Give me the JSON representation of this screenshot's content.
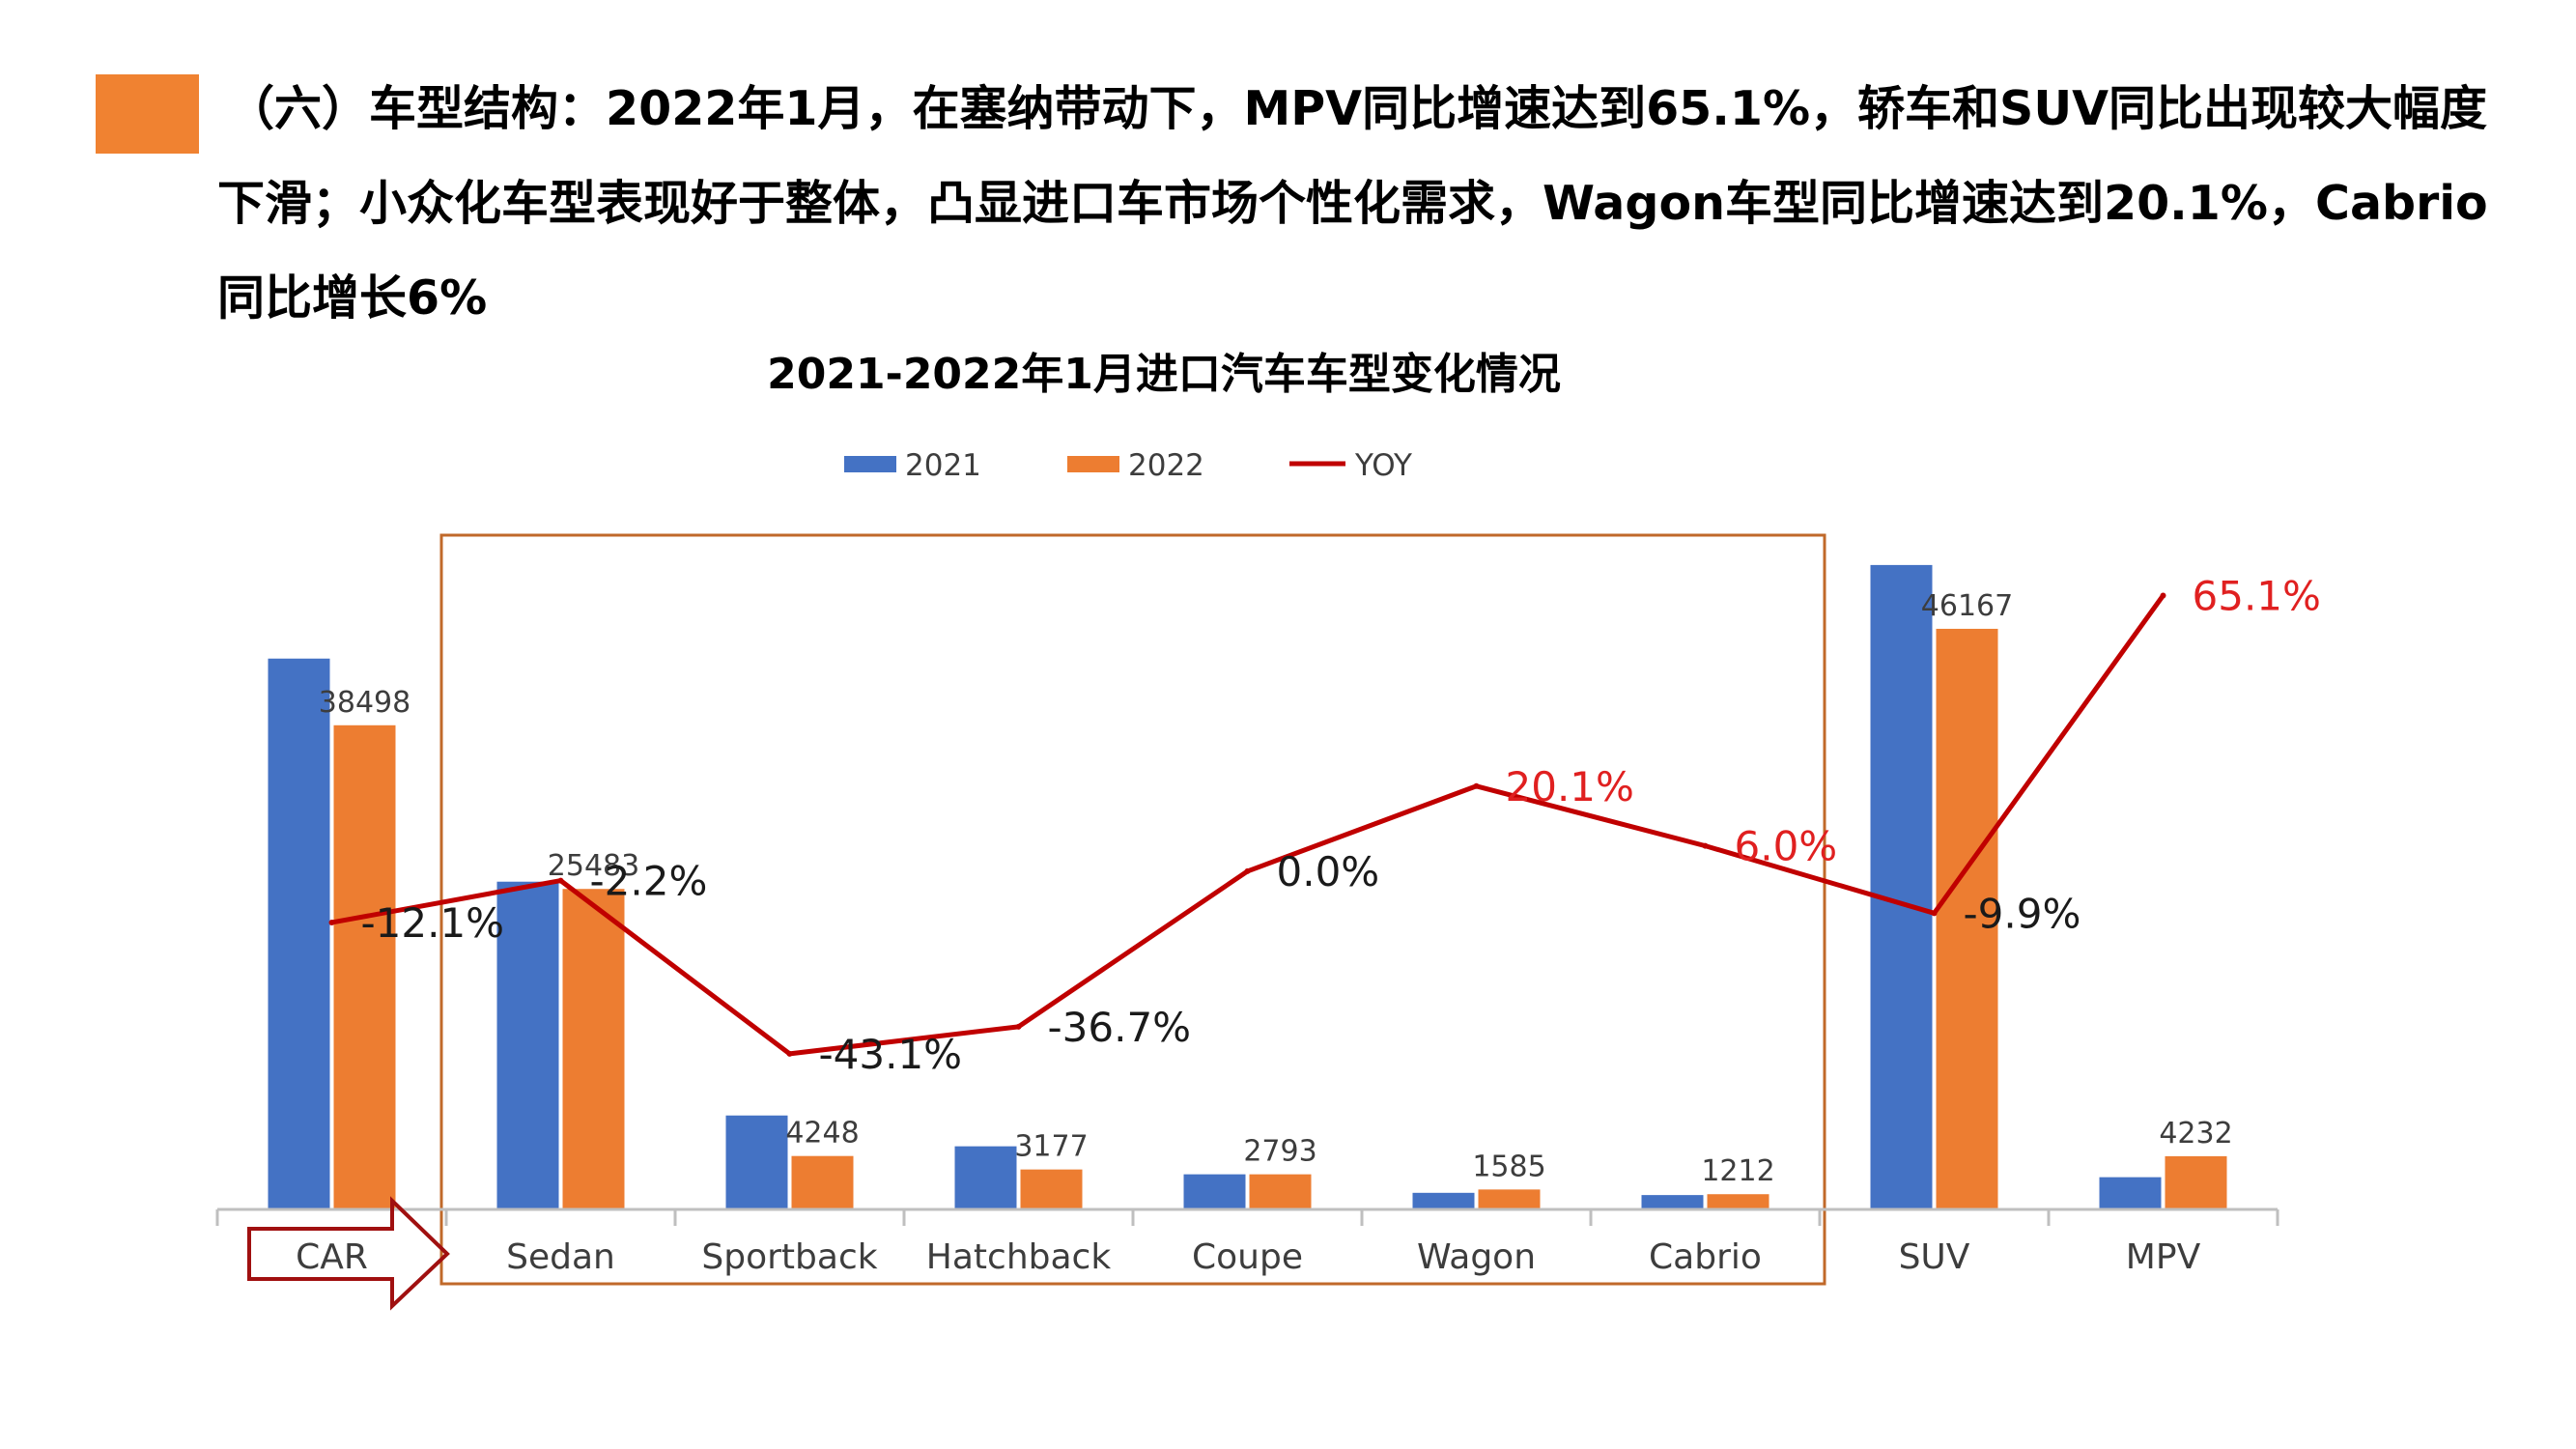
{
  "heading": {
    "line1": "（六）车型结构：2022年1月，在塞纳带动下，MPV同比增速达到65.1%，轿车和SUV同比出现较大幅度",
    "line2": "下滑；小众化车型表现好于整体，凸显进口车市场个性化需求，Wagon车型同比增速达到20.1%，Cabrio",
    "line3": "同比增长6%"
  },
  "colors": {
    "accent": "#F08231",
    "series_2021": "#4472C4",
    "series_2022": "#ED7D31",
    "yoy_line": "#C00000",
    "yoy_label_positive": "#E02020",
    "yoy_label_negative": "#1a1a1a",
    "highlight_box": "#C0692A",
    "arrow": "#A01010"
  },
  "chart_data": {
    "type": "bar",
    "title": "2021-2022年1月进口汽车车型变化情况",
    "categories": [
      "CAR",
      "Sedan",
      "Sportback",
      "Hatchback",
      "Coupe",
      "Wagon",
      "Cabrio",
      "SUV",
      "MPV"
    ],
    "series": [
      {
        "name": "2021",
        "values": [
          43800,
          26060,
          7470,
          5020,
          2793,
          1320,
          1143,
          51240,
          2563
        ]
      },
      {
        "name": "2022",
        "values": [
          38498,
          25483,
          4248,
          3177,
          2793,
          1585,
          1212,
          46167,
          4232
        ]
      }
    ],
    "data_labels_2022": [
      "38498",
      "25483",
      "4248",
      "3177",
      "2793",
      "1585",
      "1212",
      "46167",
      "4232"
    ],
    "yoy": {
      "name": "YOY",
      "values": [
        -12.1,
        -2.2,
        -43.1,
        -36.7,
        0.0,
        20.1,
        6.0,
        -9.9,
        65.1
      ],
      "labels": [
        "-12.1%",
        "-2.2%",
        "-43.1%",
        "-36.7%",
        "0.0%",
        "20.1%",
        "6.0%",
        "-9.9%",
        "65.1%"
      ]
    },
    "ylim": [
      0,
      52000
    ],
    "yoy_range": [
      -60,
      70
    ],
    "legend": [
      "2021",
      "2022",
      "YOY"
    ],
    "legend_position": "top",
    "highlight_categories": [
      "Sedan",
      "Sportback",
      "Hatchback",
      "Coupe",
      "Wagon",
      "Cabrio"
    ],
    "arrow_category": "CAR"
  }
}
